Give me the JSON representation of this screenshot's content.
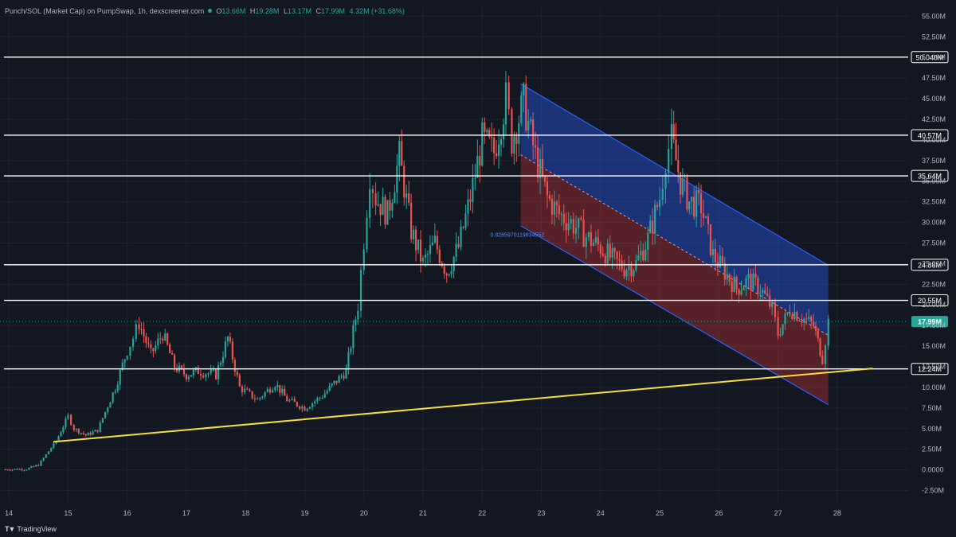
{
  "header": {
    "symbol": "Punch/SOL (Market Cap) on PumpSwap, 1h, dexscreener.com",
    "open_label": "O",
    "open": "13.66M",
    "high_label": "H",
    "high": "19.28M",
    "low_label": "L",
    "low": "13.17M",
    "close_label": "C",
    "close": "17.99M",
    "change": "4.32M (+31.68%)"
  },
  "brand": {
    "name": "TradingView"
  },
  "colors": {
    "background": "#131722",
    "grid": "#1e222d",
    "up": "#26a69a",
    "down": "#ef5350",
    "level": "#ffffff",
    "trendline": "#f6e03b",
    "channel_upper_fill": "#2962ff",
    "channel_lower_fill": "#e53935",
    "channel_line": "#2962ff"
  },
  "chart_data": {
    "type": "candlestick",
    "title": "",
    "x_ticks": [
      "14",
      "15",
      "16",
      "17",
      "18",
      "19",
      "20",
      "21",
      "22",
      "23",
      "24",
      "25",
      "26",
      "27",
      "28"
    ],
    "y_ticks": [
      "55.00M",
      "52.50M",
      "50.00M",
      "47.50M",
      "45.00M",
      "42.50M",
      "40.00M",
      "37.50M",
      "35.00M",
      "32.50M",
      "30.00M",
      "27.50M",
      "25.00M",
      "22.50M",
      "20.00M",
      "17.50M",
      "15.00M",
      "12.50M",
      "10.00M",
      "7.50M",
      "5.00M",
      "2.50M",
      "0.0000",
      "-2.50M"
    ],
    "ylim": [
      -3.8,
      56.0
    ],
    "xlim": [
      13.85,
      29.2
    ],
    "grid": true,
    "price_series": [
      [
        13.9,
        0.05
      ],
      [
        14.3,
        0.1
      ],
      [
        14.5,
        0.6
      ],
      [
        14.8,
        3.5
      ],
      [
        15.0,
        6.5
      ],
      [
        15.1,
        5.0
      ],
      [
        15.3,
        4.2
      ],
      [
        15.5,
        4.8
      ],
      [
        15.8,
        10.0
      ],
      [
        16.0,
        14.5
      ],
      [
        16.1,
        16.0
      ],
      [
        16.2,
        17.8
      ],
      [
        16.4,
        14.0
      ],
      [
        16.6,
        16.5
      ],
      [
        16.8,
        12.5
      ],
      [
        17.0,
        11.5
      ],
      [
        17.2,
        12.0
      ],
      [
        17.5,
        11.5
      ],
      [
        17.7,
        16.0
      ],
      [
        17.9,
        10.0
      ],
      [
        18.2,
        8.5
      ],
      [
        18.5,
        10.5
      ],
      [
        18.7,
        8.5
      ],
      [
        19.0,
        7.5
      ],
      [
        19.3,
        9.0
      ],
      [
        19.5,
        10.5
      ],
      [
        19.7,
        12.0
      ],
      [
        19.9,
        20.0
      ],
      [
        20.0,
        28.0
      ],
      [
        20.1,
        36.0
      ],
      [
        20.2,
        33.0
      ],
      [
        20.4,
        31.0
      ],
      [
        20.6,
        38.0
      ],
      [
        20.8,
        29.0
      ],
      [
        21.0,
        25.0
      ],
      [
        21.2,
        27.5
      ],
      [
        21.4,
        24.0
      ],
      [
        21.6,
        27.0
      ],
      [
        21.8,
        33.0
      ],
      [
        22.0,
        40.0
      ],
      [
        22.2,
        38.5
      ],
      [
        22.4,
        45.0
      ],
      [
        22.5,
        40.0
      ],
      [
        22.7,
        44.5
      ],
      [
        22.9,
        38.0
      ],
      [
        23.1,
        33.0
      ],
      [
        23.3,
        31.0
      ],
      [
        23.5,
        30.0
      ],
      [
        23.8,
        28.0
      ],
      [
        24.0,
        27.0
      ],
      [
        24.2,
        25.5
      ],
      [
        24.4,
        24.5
      ],
      [
        24.6,
        25.0
      ],
      [
        24.8,
        28.0
      ],
      [
        25.0,
        33.0
      ],
      [
        25.1,
        38.0
      ],
      [
        25.2,
        40.0
      ],
      [
        25.35,
        35.0
      ],
      [
        25.5,
        32.5
      ],
      [
        25.7,
        32.0
      ],
      [
        25.9,
        26.0
      ],
      [
        26.1,
        24.0
      ],
      [
        26.3,
        22.0
      ],
      [
        26.5,
        23.0
      ],
      [
        26.7,
        22.0
      ],
      [
        26.9,
        19.5
      ],
      [
        27.0,
        16.5
      ],
      [
        27.2,
        19.5
      ],
      [
        27.4,
        18.5
      ],
      [
        27.6,
        17.5
      ],
      [
        27.75,
        13.5
      ],
      [
        27.85,
        17.99
      ]
    ],
    "horizontal_levels": [
      {
        "value": 50.04,
        "label": "50.040M"
      },
      {
        "value": 40.57,
        "label": "40.57M"
      },
      {
        "value": 35.64,
        "label": "35.64M"
      },
      {
        "value": 24.86,
        "label": "24.86M"
      },
      {
        "value": 20.55,
        "label": "20.55M"
      },
      {
        "value": 12.24,
        "label": "12.24M"
      }
    ],
    "current_price": {
      "value": 17.99,
      "label": "17.99M"
    },
    "trendline": {
      "from": [
        14.75,
        3.4
      ],
      "to": [
        28.6,
        12.3
      ]
    },
    "channel": {
      "x_start": 22.65,
      "x_end": 27.85,
      "upper": [
        46.8,
        24.8
      ],
      "mid": [
        38.2,
        16.3
      ],
      "lower": [
        29.6,
        7.9
      ]
    },
    "channel_annotation": "0.8285970119834552"
  }
}
